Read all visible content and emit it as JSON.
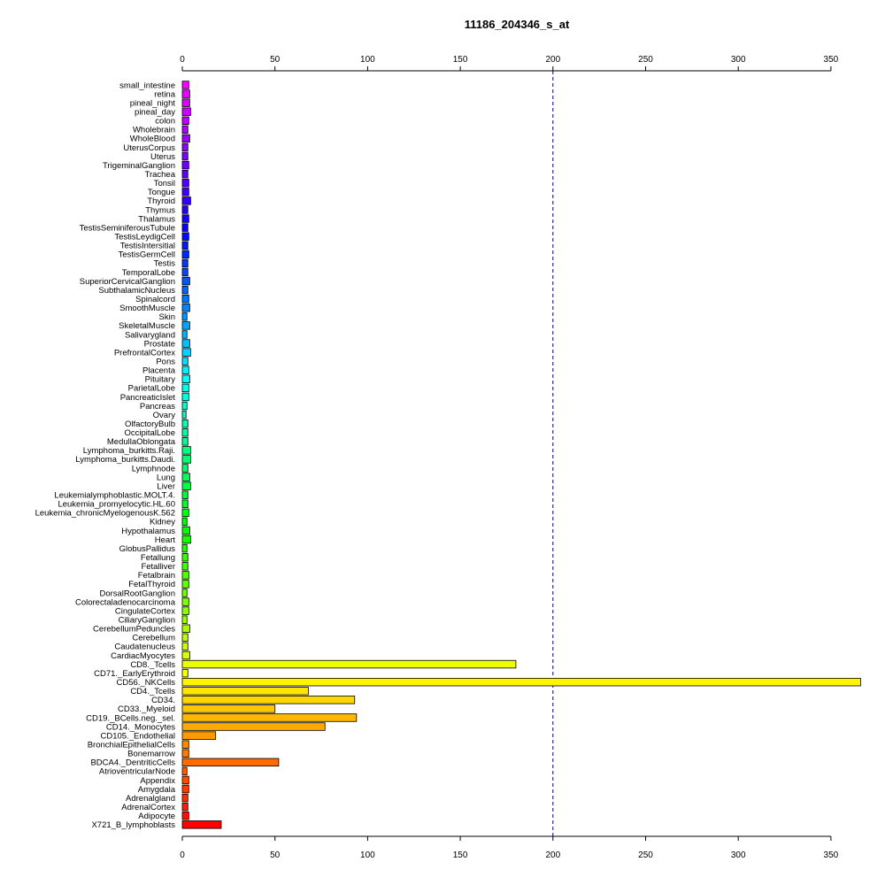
{
  "chart_data": {
    "type": "bar",
    "orientation": "horizontal",
    "title": "11186_204346_s_at",
    "xlim": [
      0,
      350
    ],
    "xticks": [
      0,
      50,
      100,
      150,
      200,
      250,
      300,
      350
    ],
    "reference_line": 200,
    "reference_line_color": "#00008b",
    "categories": [
      "small_intestine",
      "retina",
      "pineal_night",
      "pineal_day",
      "colon",
      "Wholebrain",
      "WholeBlood",
      "UterusCorpus",
      "Uterus",
      "TrigeminalGanglion",
      "Trachea",
      "Tonsil",
      "Tongue",
      "Thyroid",
      "Thymus",
      "Thalamus",
      "TestisSeminiferousTubule",
      "TestisLeydigCell",
      "TestisIntersitial",
      "TestisGermCell",
      "Testis",
      "TemporalLobe",
      "SuperiorCervicalGanglion",
      "SubthalamicNucleus",
      "Spinalcord",
      "SmoothMuscle",
      "Skin",
      "SkeletalMuscle",
      "Salivarygland",
      "Prostate",
      "PrefrontalCortex",
      "Pons",
      "Placenta",
      "Pituitary",
      "ParietalLobe",
      "PancreaticIslet",
      "Pancreas",
      "Ovary",
      "OlfactoryBulb",
      "OccipitalLobe",
      "MedullaOblongata",
      "Lymphoma_burkitts.Raji.",
      "Lymphoma_burkitts.Daudi.",
      "Lymphnode",
      "Lung",
      "Liver",
      "Leukemialymphoblastic.MOLT.4.",
      "Leukemia_promyelocytic.HL.60",
      "Leukemia_chronicMyelogenousK.562",
      "Kidney",
      "Hypothalamus",
      "Heart",
      "GlobusPallidus",
      "Fetallung",
      "Fetalliver",
      "Fetalbrain",
      "FetalThyroid",
      "DorsalRootGanglion",
      "Colorectaladenocarcinoma",
      "CingulateCortex",
      "CiliaryGanglion",
      "CerebellumPeduncles",
      "Cerebellum",
      "Caudatenucleus",
      "CardiacMyocytes",
      "CD8._Tcells",
      "CD71._EarlyErythroid",
      "CD56._NKCells",
      "CD4._Tcells",
      "CD34.",
      "CD33._Myeloid",
      "CD19._BCells.neg._sel.",
      "CD14._Monocytes",
      "CD105._Endothelial",
      "BronchialEpithelialCells",
      "Bonemarrow",
      "BDCA4._DentriticCells",
      "AtrioventricularNode",
      "Appendix",
      "Amygdala",
      "Adrenalgland",
      "AdrenalCortex",
      "Adipocyte",
      "X721_B_lymphoblasts"
    ],
    "values": [
      3.5,
      4,
      4,
      4.5,
      3.5,
      3,
      4,
      3,
      3,
      3.5,
      3,
      3.5,
      3.5,
      4.5,
      3,
      3.5,
      3,
      3.5,
      3,
      3.5,
      3,
      3,
      4,
      3,
      3.5,
      4,
      2.5,
      4,
      2.5,
      4,
      4.5,
      3,
      3.5,
      4,
      3.5,
      3.5,
      2.5,
      2,
      3,
      3,
      3,
      4.5,
      4.5,
      3,
      4,
      4.5,
      3,
      3,
      3.5,
      2.5,
      4,
      4.5,
      2.5,
      3,
      3,
      3.5,
      3.5,
      2.5,
      3.5,
      3.5,
      2.5,
      4,
      3,
      3,
      4,
      180,
      3,
      366,
      68,
      93,
      50,
      94,
      77,
      18,
      3.5,
      3.5,
      52,
      2.5,
      3.5,
      3.5,
      3,
      3,
      3.5,
      21
    ]
  }
}
